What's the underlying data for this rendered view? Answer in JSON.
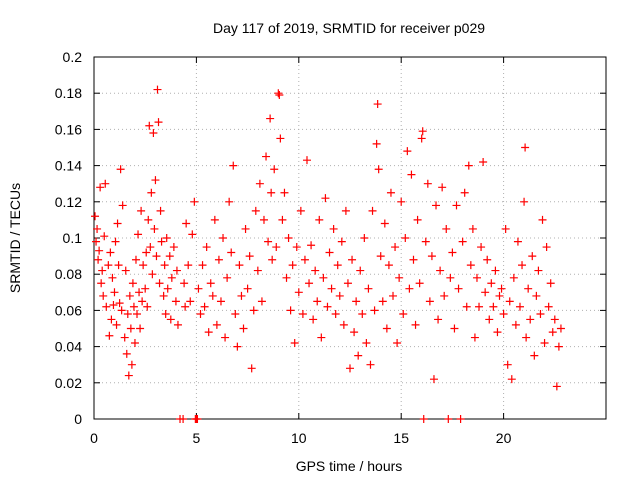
{
  "chart_data": {
    "type": "scatter",
    "title": "Day 117 of 2019, SRMTID for receiver p029",
    "xlabel": "GPS time / hours",
    "ylabel": "SRMTID / TECUs",
    "xlim": [
      0,
      25
    ],
    "ylim": [
      0,
      0.2
    ],
    "xticks": [
      0,
      5,
      10,
      15,
      20
    ],
    "xtick_labels": [
      "0",
      "5",
      "10",
      "15",
      "20"
    ],
    "yticks": [
      0,
      0.02,
      0.04,
      0.06,
      0.08,
      0.1,
      0.12,
      0.14,
      0.16,
      0.18,
      0.2
    ],
    "ytick_labels": [
      "0",
      "0.02",
      "0.04",
      "0.06",
      "0.08",
      "0.1",
      "0.12",
      "0.14",
      "0.16",
      "0.18",
      "0.2"
    ],
    "grid": true,
    "marker": "+",
    "color": "#ff0000",
    "series": [
      {
        "name": "SRMTID",
        "points": [
          [
            0.05,
            0.112
          ],
          [
            0.1,
            0.098
          ],
          [
            0.15,
            0.105
          ],
          [
            0.2,
            0.088
          ],
          [
            0.25,
            0.093
          ],
          [
            0.3,
            0.128
          ],
          [
            0.35,
            0.075
          ],
          [
            0.4,
            0.082
          ],
          [
            0.45,
            0.068
          ],
          [
            0.5,
            0.101
          ],
          [
            0.55,
            0.13
          ],
          [
            0.6,
            0.062
          ],
          [
            0.7,
            0.085
          ],
          [
            0.75,
            0.046
          ],
          [
            0.8,
            0.092
          ],
          [
            0.85,
            0.055
          ],
          [
            0.9,
            0.078
          ],
          [
            0.95,
            0.063
          ],
          [
            1.0,
            0.07
          ],
          [
            1.05,
            0.098
          ],
          [
            1.1,
            0.052
          ],
          [
            1.15,
            0.108
          ],
          [
            1.2,
            0.085
          ],
          [
            1.25,
            0.064
          ],
          [
            1.3,
            0.138
          ],
          [
            1.35,
            0.06
          ],
          [
            1.4,
            0.118
          ],
          [
            1.5,
            0.045
          ],
          [
            1.55,
            0.082
          ],
          [
            1.6,
            0.036
          ],
          [
            1.65,
            0.058
          ],
          [
            1.7,
            0.024
          ],
          [
            1.75,
            0.068
          ],
          [
            1.8,
            0.05
          ],
          [
            1.85,
            0.03
          ],
          [
            1.9,
            0.075
          ],
          [
            1.95,
            0.062
          ],
          [
            2.0,
            0.042
          ],
          [
            2.05,
            0.088
          ],
          [
            2.1,
            0.058
          ],
          [
            2.15,
            0.102
          ],
          [
            2.2,
            0.07
          ],
          [
            2.25,
            0.05
          ],
          [
            2.3,
            0.115
          ],
          [
            2.35,
            0.065
          ],
          [
            2.4,
            0.085
          ],
          [
            2.5,
            0.072
          ],
          [
            2.55,
            0.092
          ],
          [
            2.6,
            0.062
          ],
          [
            2.65,
            0.11
          ],
          [
            2.7,
            0.162
          ],
          [
            2.75,
            0.095
          ],
          [
            2.8,
            0.125
          ],
          [
            2.85,
            0.08
          ],
          [
            2.9,
            0.158
          ],
          [
            2.95,
            0.105
          ],
          [
            3.0,
            0.132
          ],
          [
            3.05,
            0.09
          ],
          [
            3.1,
            0.182
          ],
          [
            3.15,
            0.164
          ],
          [
            3.2,
            0.075
          ],
          [
            3.25,
            0.115
          ],
          [
            3.3,
            0.098
          ],
          [
            3.4,
            0.068
          ],
          [
            3.45,
            0.085
          ],
          [
            3.5,
            0.058
          ],
          [
            3.55,
            0.1
          ],
          [
            3.6,
            0.072
          ],
          [
            3.7,
            0.09
          ],
          [
            3.75,
            0.055
          ],
          [
            3.8,
            0.078
          ],
          [
            3.9,
            0.095
          ],
          [
            4.0,
            0.065
          ],
          [
            4.05,
            0.082
          ],
          [
            4.1,
            0.052
          ],
          [
            4.2,
            0.0
          ],
          [
            4.35,
            0.0
          ],
          [
            4.4,
            0.075
          ],
          [
            4.45,
            0.062
          ],
          [
            4.5,
            0.108
          ],
          [
            4.6,
            0.085
          ],
          [
            4.7,
            0.065
          ],
          [
            4.8,
            0.102
          ],
          [
            4.9,
            0.12
          ],
          [
            4.95,
            0.0
          ],
          [
            5.0,
            0.0
          ],
          [
            5.05,
            0.0
          ],
          [
            5.1,
            0.072
          ],
          [
            5.2,
            0.058
          ],
          [
            5.3,
            0.085
          ],
          [
            5.4,
            0.062
          ],
          [
            5.5,
            0.095
          ],
          [
            5.6,
            0.048
          ],
          [
            5.7,
            0.075
          ],
          [
            5.8,
            0.068
          ],
          [
            5.9,
            0.11
          ],
          [
            6.0,
            0.052
          ],
          [
            6.1,
            0.088
          ],
          [
            6.2,
            0.065
          ],
          [
            6.3,
            0.1
          ],
          [
            6.4,
            0.045
          ],
          [
            6.5,
            0.078
          ],
          [
            6.6,
            0.12
          ],
          [
            6.7,
            0.092
          ],
          [
            6.8,
            0.14
          ],
          [
            6.9,
            0.058
          ],
          [
            7.0,
            0.04
          ],
          [
            7.1,
            0.085
          ],
          [
            7.2,
            0.068
          ],
          [
            7.3,
            0.05
          ],
          [
            7.4,
            0.105
          ],
          [
            7.5,
            0.072
          ],
          [
            7.6,
            0.09
          ],
          [
            7.7,
            0.028
          ],
          [
            7.8,
            0.06
          ],
          [
            7.9,
            0.115
          ],
          [
            8.0,
            0.082
          ],
          [
            8.1,
            0.13
          ],
          [
            8.2,
            0.065
          ],
          [
            8.3,
            0.11
          ],
          [
            8.4,
            0.145
          ],
          [
            8.5,
            0.098
          ],
          [
            8.6,
            0.166
          ],
          [
            8.65,
            0.125
          ],
          [
            8.7,
            0.088
          ],
          [
            8.8,
            0.138
          ],
          [
            8.9,
            0.095
          ],
          [
            9.0,
            0.18
          ],
          [
            9.05,
            0.179
          ],
          [
            9.1,
            0.155
          ],
          [
            9.2,
            0.11
          ],
          [
            9.3,
            0.125
          ],
          [
            9.4,
            0.078
          ],
          [
            9.5,
            0.1
          ],
          [
            9.6,
            0.06
          ],
          [
            9.7,
            0.085
          ],
          [
            9.8,
            0.042
          ],
          [
            9.9,
            0.095
          ],
          [
            10.0,
            0.07
          ],
          [
            10.1,
            0.115
          ],
          [
            10.2,
            0.058
          ],
          [
            10.3,
            0.088
          ],
          [
            10.4,
            0.143
          ],
          [
            10.5,
            0.075
          ],
          [
            10.6,
            0.096
          ],
          [
            10.7,
            0.055
          ],
          [
            10.8,
            0.082
          ],
          [
            10.9,
            0.065
          ],
          [
            11.0,
            0.11
          ],
          [
            11.1,
            0.045
          ],
          [
            11.2,
            0.078
          ],
          [
            11.3,
            0.122
          ],
          [
            11.4,
            0.062
          ],
          [
            11.5,
            0.092
          ],
          [
            11.6,
            0.072
          ],
          [
            11.7,
            0.105
          ],
          [
            11.8,
            0.058
          ],
          [
            11.9,
            0.085
          ],
          [
            12.0,
            0.068
          ],
          [
            12.1,
            0.098
          ],
          [
            12.2,
            0.052
          ],
          [
            12.3,
            0.115
          ],
          [
            12.4,
            0.075
          ],
          [
            12.5,
            0.028
          ],
          [
            12.6,
            0.088
          ],
          [
            12.7,
            0.048
          ],
          [
            12.8,
            0.065
          ],
          [
            12.9,
            0.035
          ],
          [
            13.0,
            0.082
          ],
          [
            13.1,
            0.058
          ],
          [
            13.2,
            0.1
          ],
          [
            13.3,
            0.042
          ],
          [
            13.4,
            0.072
          ],
          [
            13.5,
            0.03
          ],
          [
            13.6,
            0.115
          ],
          [
            13.7,
            0.06
          ],
          [
            13.8,
            0.152
          ],
          [
            13.85,
            0.174
          ],
          [
            13.9,
            0.138
          ],
          [
            14.0,
            0.09
          ],
          [
            14.1,
            0.065
          ],
          [
            14.2,
            0.108
          ],
          [
            14.3,
            0.05
          ],
          [
            14.4,
            0.085
          ],
          [
            14.5,
            0.125
          ],
          [
            14.6,
            0.068
          ],
          [
            14.7,
            0.095
          ],
          [
            14.8,
            0.042
          ],
          [
            14.9,
            0.078
          ],
          [
            15.0,
            0.12
          ],
          [
            15.1,
            0.058
          ],
          [
            15.2,
            0.1
          ],
          [
            15.3,
            0.148
          ],
          [
            15.4,
            0.072
          ],
          [
            15.5,
            0.135
          ],
          [
            15.6,
            0.088
          ],
          [
            15.7,
            0.052
          ],
          [
            15.8,
            0.11
          ],
          [
            15.9,
            0.075
          ],
          [
            16.0,
            0.155
          ],
          [
            16.05,
            0.159
          ],
          [
            16.1,
            0.0
          ],
          [
            16.2,
            0.098
          ],
          [
            16.3,
            0.13
          ],
          [
            16.4,
            0.065
          ],
          [
            16.5,
            0.09
          ],
          [
            16.6,
            0.022
          ],
          [
            16.7,
            0.118
          ],
          [
            16.8,
            0.055
          ],
          [
            16.9,
            0.082
          ],
          [
            17.0,
            0.128
          ],
          [
            17.1,
            0.068
          ],
          [
            17.2,
            0.105
          ],
          [
            17.3,
            0.0
          ],
          [
            17.4,
            0.078
          ],
          [
            17.5,
            0.092
          ],
          [
            17.6,
            0.05
          ],
          [
            17.7,
            0.118
          ],
          [
            17.8,
            0.072
          ],
          [
            17.9,
            0.0
          ],
          [
            18.0,
            0.098
          ],
          [
            18.1,
            0.125
          ],
          [
            18.2,
            0.062
          ],
          [
            18.3,
            0.14
          ],
          [
            18.4,
            0.085
          ],
          [
            18.5,
            0.105
          ],
          [
            18.6,
            0.045
          ],
          [
            18.7,
            0.078
          ],
          [
            18.8,
            0.062
          ],
          [
            18.9,
            0.095
          ],
          [
            19.0,
            0.142
          ],
          [
            19.1,
            0.07
          ],
          [
            19.2,
            0.088
          ],
          [
            19.3,
            0.055
          ],
          [
            19.4,
            0.075
          ],
          [
            19.5,
            0.062
          ],
          [
            19.6,
            0.082
          ],
          [
            19.7,
            0.048
          ],
          [
            19.8,
            0.068
          ],
          [
            19.9,
            0.072
          ],
          [
            20.0,
            0.058
          ],
          [
            20.1,
            0.105
          ],
          [
            20.2,
            0.03
          ],
          [
            20.3,
            0.065
          ],
          [
            20.4,
            0.022
          ],
          [
            20.5,
            0.078
          ],
          [
            20.6,
            0.052
          ],
          [
            20.7,
            0.098
          ],
          [
            20.8,
            0.062
          ],
          [
            20.9,
            0.085
          ],
          [
            21.0,
            0.12
          ],
          [
            21.05,
            0.15
          ],
          [
            21.1,
            0.045
          ],
          [
            21.2,
            0.072
          ],
          [
            21.3,
            0.055
          ],
          [
            21.4,
            0.09
          ],
          [
            21.5,
            0.035
          ],
          [
            21.6,
            0.068
          ],
          [
            21.7,
            0.082
          ],
          [
            21.8,
            0.058
          ],
          [
            21.9,
            0.11
          ],
          [
            22.0,
            0.042
          ],
          [
            22.1,
            0.095
          ],
          [
            22.2,
            0.062
          ],
          [
            22.3,
            0.075
          ],
          [
            22.4,
            0.048
          ],
          [
            22.5,
            0.055
          ],
          [
            22.6,
            0.018
          ],
          [
            22.7,
            0.04
          ],
          [
            22.8,
            0.05
          ]
        ]
      }
    ]
  }
}
